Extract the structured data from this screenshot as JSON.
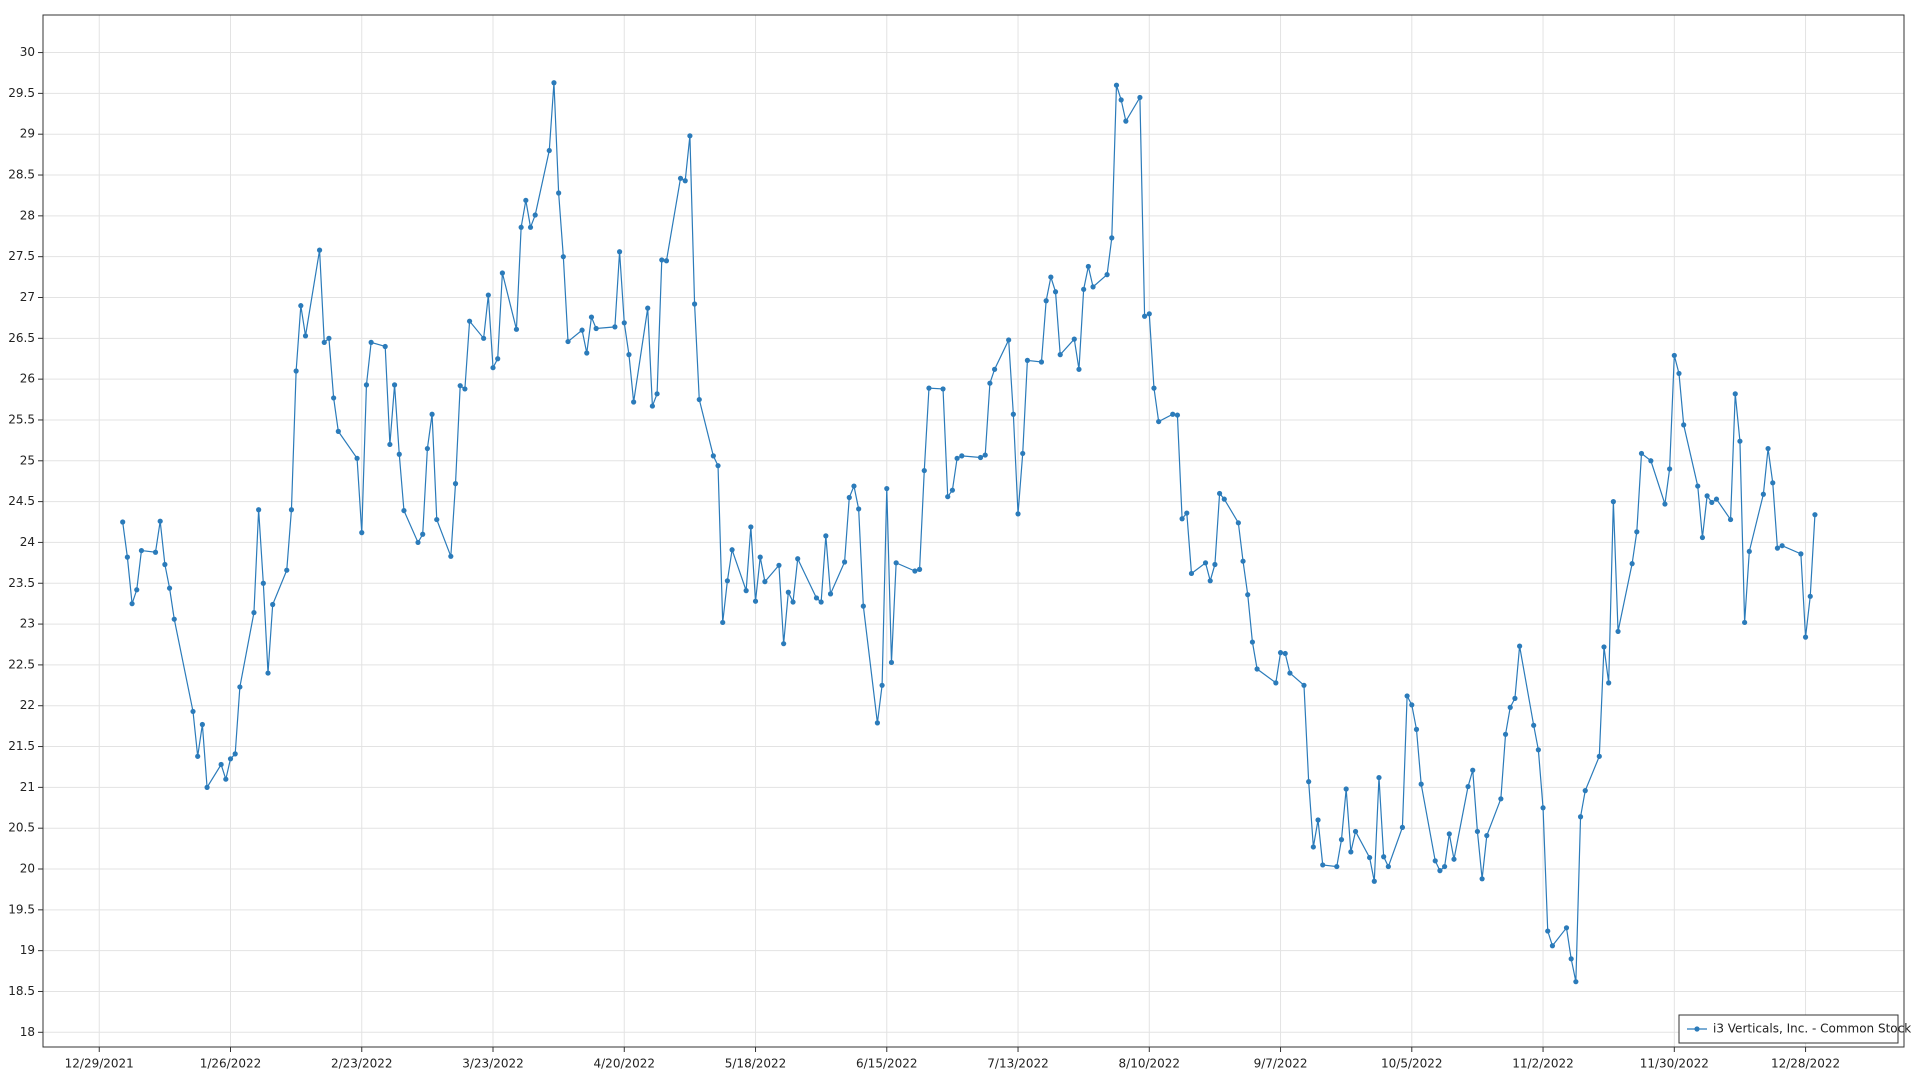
{
  "chart_data": {
    "type": "line",
    "x": [
      "2022-01-03",
      "2022-01-04",
      "2022-01-05",
      "2022-01-06",
      "2022-01-07",
      "2022-01-10",
      "2022-01-11",
      "2022-01-12",
      "2022-01-13",
      "2022-01-14",
      "2022-01-18",
      "2022-01-19",
      "2022-01-20",
      "2022-01-21",
      "2022-01-24",
      "2022-01-25",
      "2022-01-26",
      "2022-01-27",
      "2022-01-28",
      "2022-01-31",
      "2022-02-01",
      "2022-02-02",
      "2022-02-03",
      "2022-02-04",
      "2022-02-07",
      "2022-02-08",
      "2022-02-09",
      "2022-02-10",
      "2022-02-11",
      "2022-02-14",
      "2022-02-15",
      "2022-02-16",
      "2022-02-17",
      "2022-02-18",
      "2022-02-22",
      "2022-02-23",
      "2022-02-24",
      "2022-02-25",
      "2022-02-28",
      "2022-03-01",
      "2022-03-02",
      "2022-03-03",
      "2022-03-04",
      "2022-03-07",
      "2022-03-08",
      "2022-03-09",
      "2022-03-10",
      "2022-03-11",
      "2022-03-14",
      "2022-03-15",
      "2022-03-16",
      "2022-03-17",
      "2022-03-18",
      "2022-03-21",
      "2022-03-22",
      "2022-03-23",
      "2022-03-24",
      "2022-03-25",
      "2022-03-28",
      "2022-03-29",
      "2022-03-30",
      "2022-03-31",
      "2022-04-01",
      "2022-04-04",
      "2022-04-05",
      "2022-04-06",
      "2022-04-07",
      "2022-04-08",
      "2022-04-11",
      "2022-04-12",
      "2022-04-13",
      "2022-04-14",
      "2022-04-18",
      "2022-04-19",
      "2022-04-20",
      "2022-04-21",
      "2022-04-22",
      "2022-04-25",
      "2022-04-26",
      "2022-04-27",
      "2022-04-28",
      "2022-04-29",
      "2022-05-02",
      "2022-05-03",
      "2022-05-04",
      "2022-05-05",
      "2022-05-06",
      "2022-05-09",
      "2022-05-10",
      "2022-05-11",
      "2022-05-12",
      "2022-05-13",
      "2022-05-16",
      "2022-05-17",
      "2022-05-18",
      "2022-05-19",
      "2022-05-20",
      "2022-05-23",
      "2022-05-24",
      "2022-05-25",
      "2022-05-26",
      "2022-05-27",
      "2022-05-31",
      "2022-06-01",
      "2022-06-02",
      "2022-06-03",
      "2022-06-06",
      "2022-06-07",
      "2022-06-08",
      "2022-06-09",
      "2022-06-10",
      "2022-06-13",
      "2022-06-14",
      "2022-06-15",
      "2022-06-16",
      "2022-06-17",
      "2022-06-21",
      "2022-06-22",
      "2022-06-23",
      "2022-06-24",
      "2022-06-27",
      "2022-06-28",
      "2022-06-29",
      "2022-06-30",
      "2022-07-01",
      "2022-07-05",
      "2022-07-06",
      "2022-07-07",
      "2022-07-08",
      "2022-07-11",
      "2022-07-12",
      "2022-07-13",
      "2022-07-14",
      "2022-07-15",
      "2022-07-18",
      "2022-07-19",
      "2022-07-20",
      "2022-07-21",
      "2022-07-22",
      "2022-07-25",
      "2022-07-26",
      "2022-07-27",
      "2022-07-28",
      "2022-07-29",
      "2022-08-01",
      "2022-08-02",
      "2022-08-03",
      "2022-08-04",
      "2022-08-05",
      "2022-08-08",
      "2022-08-09",
      "2022-08-10",
      "2022-08-11",
      "2022-08-12",
      "2022-08-15",
      "2022-08-16",
      "2022-08-17",
      "2022-08-18",
      "2022-08-19",
      "2022-08-22",
      "2022-08-23",
      "2022-08-24",
      "2022-08-25",
      "2022-08-26",
      "2022-08-29",
      "2022-08-30",
      "2022-08-31",
      "2022-09-01",
      "2022-09-02",
      "2022-09-06",
      "2022-09-07",
      "2022-09-08",
      "2022-09-09",
      "2022-09-12",
      "2022-09-13",
      "2022-09-14",
      "2022-09-15",
      "2022-09-16",
      "2022-09-19",
      "2022-09-20",
      "2022-09-21",
      "2022-09-22",
      "2022-09-23",
      "2022-09-26",
      "2022-09-27",
      "2022-09-28",
      "2022-09-29",
      "2022-09-30",
      "2022-10-03",
      "2022-10-04",
      "2022-10-05",
      "2022-10-06",
      "2022-10-07",
      "2022-10-10",
      "2022-10-11",
      "2022-10-12",
      "2022-10-13",
      "2022-10-14",
      "2022-10-17",
      "2022-10-18",
      "2022-10-19",
      "2022-10-20",
      "2022-10-21",
      "2022-10-24",
      "2022-10-25",
      "2022-10-26",
      "2022-10-27",
      "2022-10-28",
      "2022-10-31",
      "2022-11-01",
      "2022-11-02",
      "2022-11-03",
      "2022-11-04",
      "2022-11-07",
      "2022-11-08",
      "2022-11-09",
      "2022-11-10",
      "2022-11-11",
      "2022-11-14",
      "2022-11-15",
      "2022-11-16",
      "2022-11-17",
      "2022-11-18",
      "2022-11-21",
      "2022-11-22",
      "2022-11-23",
      "2022-11-25",
      "2022-11-28",
      "2022-11-29",
      "2022-11-30",
      "2022-12-01",
      "2022-12-02",
      "2022-12-05",
      "2022-12-06",
      "2022-12-07",
      "2022-12-08",
      "2022-12-09",
      "2022-12-12",
      "2022-12-13",
      "2022-12-14",
      "2022-12-15",
      "2022-12-16",
      "2022-12-19",
      "2022-12-20",
      "2022-12-21",
      "2022-12-22",
      "2022-12-23",
      "2022-12-27",
      "2022-12-28",
      "2022-12-29",
      "2022-12-30"
    ],
    "series": [
      {
        "name": "i3 Verticals, Inc. - Common Stock",
        "color": "#2b7bba",
        "values": [
          24.25,
          23.82,
          23.25,
          23.42,
          23.9,
          23.88,
          24.26,
          23.73,
          23.44,
          23.06,
          21.93,
          21.38,
          21.77,
          21.0,
          21.28,
          21.1,
          21.35,
          21.41,
          22.23,
          23.14,
          24.4,
          23.5,
          22.4,
          23.24,
          23.66,
          24.4,
          26.1,
          26.9,
          26.53,
          27.58,
          26.45,
          26.5,
          25.77,
          25.36,
          25.03,
          24.12,
          25.93,
          26.45,
          26.4,
          25.2,
          25.93,
          25.08,
          24.39,
          24.0,
          24.1,
          25.15,
          25.57,
          24.28,
          23.83,
          24.72,
          25.92,
          25.88,
          26.71,
          26.5,
          27.03,
          26.14,
          26.25,
          27.3,
          26.61,
          27.86,
          28.19,
          27.86,
          28.01,
          28.8,
          29.63,
          28.28,
          27.5,
          26.46,
          26.6,
          26.32,
          26.76,
          26.62,
          26.64,
          27.56,
          26.69,
          26.3,
          25.72,
          26.87,
          25.67,
          25.82,
          27.46,
          27.45,
          28.46,
          28.43,
          28.98,
          26.92,
          25.75,
          25.06,
          24.94,
          23.02,
          23.53,
          23.91,
          23.41,
          24.19,
          23.28,
          23.82,
          23.52,
          23.72,
          22.76,
          23.39,
          23.27,
          23.8,
          23.32,
          23.27,
          24.08,
          23.37,
          23.76,
          24.55,
          24.69,
          24.41,
          23.22,
          21.79,
          22.25,
          24.66,
          22.53,
          23.75,
          23.65,
          23.67,
          24.88,
          25.89,
          25.88,
          24.56,
          24.64,
          25.03,
          25.06,
          25.04,
          25.07,
          25.95,
          26.12,
          26.48,
          25.57,
          24.35,
          25.09,
          26.23,
          26.21,
          26.96,
          27.25,
          27.07,
          26.3,
          26.49,
          26.12,
          27.1,
          27.38,
          27.13,
          27.28,
          27.73,
          29.6,
          29.42,
          29.16,
          29.45,
          26.77,
          26.8,
          25.89,
          25.48,
          25.57,
          25.56,
          24.29,
          24.36,
          23.62,
          23.75,
          23.53,
          23.73,
          24.6,
          24.53,
          24.24,
          23.77,
          23.36,
          22.78,
          22.45,
          22.28,
          22.65,
          22.64,
          22.4,
          22.25,
          21.07,
          20.27,
          20.6,
          20.05,
          20.03,
          20.36,
          20.98,
          20.21,
          20.46,
          20.14,
          19.85,
          21.12,
          20.15,
          20.03,
          20.51,
          22.12,
          22.01,
          21.71,
          21.04,
          20.1,
          19.98,
          20.03,
          20.43,
          20.12,
          21.01,
          21.21,
          20.46,
          19.88,
          20.41,
          20.86,
          21.65,
          21.98,
          22.09,
          22.73,
          21.76,
          21.46,
          20.75,
          19.24,
          19.06,
          19.28,
          18.9,
          18.62,
          20.64,
          20.96,
          21.38,
          22.72,
          22.28,
          24.5,
          22.91,
          23.74,
          24.13,
          25.09,
          25.0,
          24.47,
          24.9,
          26.29,
          26.07,
          25.44,
          24.69,
          24.06,
          24.57,
          24.49,
          24.53,
          24.28,
          25.82,
          25.24,
          23.02,
          23.89,
          24.59,
          25.15,
          24.73,
          23.93,
          23.96,
          23.86,
          22.84,
          23.34,
          24.34
        ]
      }
    ],
    "xlim": [
      "2021-12-17",
      "2023-01-18"
    ],
    "xticks": [
      {
        "value": "2021-12-29",
        "label": "12/29/2021"
      },
      {
        "value": "2022-01-26",
        "label": "1/26/2022"
      },
      {
        "value": "2022-02-23",
        "label": "2/23/2022"
      },
      {
        "value": "2022-03-23",
        "label": "3/23/2022"
      },
      {
        "value": "2022-04-20",
        "label": "4/20/2022"
      },
      {
        "value": "2022-05-18",
        "label": "5/18/2022"
      },
      {
        "value": "2022-06-15",
        "label": "6/15/2022"
      },
      {
        "value": "2022-07-13",
        "label": "7/13/2022"
      },
      {
        "value": "2022-08-10",
        "label": "8/10/2022"
      },
      {
        "value": "2022-09-07",
        "label": "9/7/2022"
      },
      {
        "value": "2022-10-05",
        "label": "10/5/2022"
      },
      {
        "value": "2022-11-02",
        "label": "11/2/2022"
      },
      {
        "value": "2022-11-30",
        "label": "11/30/2022"
      },
      {
        "value": "2022-12-28",
        "label": "12/28/2022"
      }
    ],
    "ylim": [
      17.82,
      30.46
    ],
    "yticks": [
      18,
      18.5,
      19,
      19.5,
      20,
      20.5,
      21,
      21.5,
      22,
      22.5,
      23,
      23.5,
      24,
      24.5,
      25,
      25.5,
      26,
      26.5,
      27,
      27.5,
      28,
      28.5,
      29,
      29.5,
      30
    ],
    "grid": true,
    "legend": "bottom-right"
  }
}
